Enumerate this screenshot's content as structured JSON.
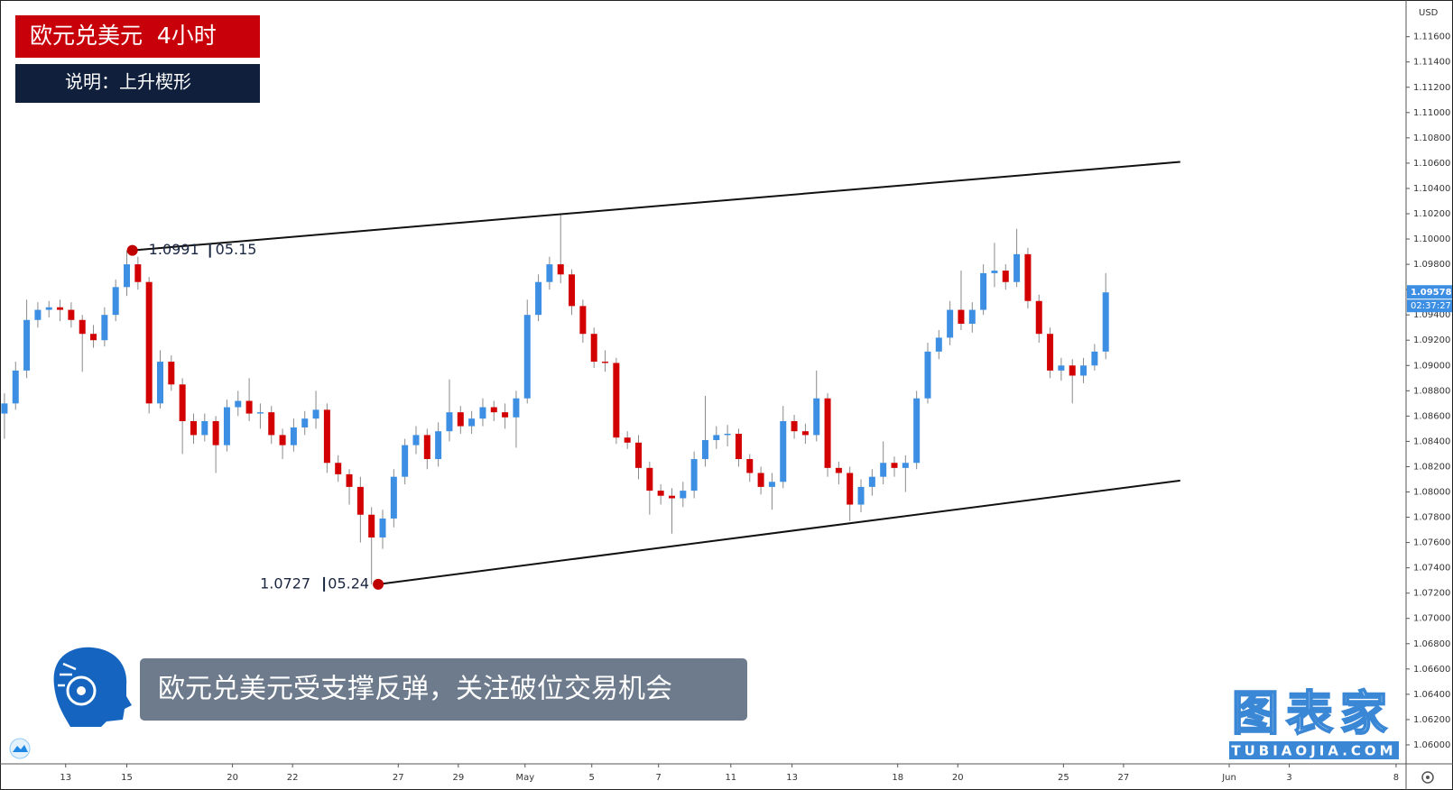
{
  "header": {
    "title": "欧元兑美元  4小时",
    "subtitle": "说明：上升楔形"
  },
  "caption": "欧元兑美元受支撑反弹，关注破位交易机会",
  "watermark": {
    "name": "图表家",
    "url": "TUBIAOJIA.COM"
  },
  "chart_data": {
    "type": "candlestick",
    "currency": "USD",
    "up_color": "#3d8fe3",
    "down_color": "#d20000",
    "open": [
      1.0862,
      1.087,
      1.0896,
      1.0936,
      1.0944,
      1.0946,
      1.0944,
      1.0936,
      1.0925,
      1.092,
      1.094,
      1.0962,
      1.098,
      1.0966,
      1.087,
      1.0903,
      1.0885,
      1.0856,
      1.0845,
      1.0856,
      1.0837,
      1.0867,
      1.0872,
      1.0862,
      1.0863,
      1.0845,
      1.0837,
      1.0851,
      1.0858,
      1.0865,
      1.0823,
      1.0814,
      1.0804,
      1.0782,
      1.0764,
      1.0779,
      1.0812,
      1.0837,
      1.0845,
      1.0826,
      1.0848,
      1.0863,
      1.0852,
      1.0858,
      1.0867,
      1.0863,
      1.0859,
      1.0874,
      1.094,
      1.0966,
      1.098,
      1.0972,
      1.0947,
      1.0925,
      1.0903,
      1.0902,
      1.0843,
      1.0839,
      1.0819,
      1.0801,
      1.0797,
      1.0795,
      1.0801,
      1.0826,
      1.0841,
      1.0845,
      1.0846,
      1.0826,
      1.0815,
      1.0804,
      1.0808,
      1.0856,
      1.0848,
      1.0845,
      1.0874,
      1.0819,
      1.0815,
      1.079,
      1.0804,
      1.0812,
      1.0823,
      1.0819,
      1.0823,
      1.0874,
      1.0911,
      1.0922,
      1.0944,
      1.0933,
      1.0944,
      1.0973,
      1.0975,
      1.0966,
      1.0988,
      1.0951,
      1.0925,
      1.0896,
      1.09,
      1.0892,
      1.09,
      1.0911
    ],
    "high": [
      1.0878,
      1.0903,
      1.0952,
      1.095,
      1.0951,
      1.0952,
      1.095,
      1.094,
      1.0932,
      1.0946,
      1.0968,
      1.0991,
      1.0986,
      1.097,
      1.0912,
      1.0908,
      1.089,
      1.0862,
      1.0862,
      1.086,
      1.0873,
      1.088,
      1.089,
      1.087,
      1.0868,
      1.085,
      1.0858,
      1.0864,
      1.088,
      1.087,
      1.0829,
      1.0818,
      1.0812,
      1.0788,
      1.0786,
      1.0818,
      1.0842,
      1.0852,
      1.085,
      1.0855,
      1.0889,
      1.0868,
      1.0864,
      1.0874,
      1.0872,
      1.087,
      1.088,
      1.0952,
      1.0972,
      1.0986,
      1.102,
      1.0976,
      1.0952,
      1.093,
      1.0912,
      1.0906,
      1.0848,
      1.0845,
      1.0824,
      1.0806,
      1.0803,
      1.0808,
      1.0832,
      1.0876,
      1.0852,
      1.0853,
      1.085,
      1.083,
      1.082,
      1.0815,
      1.0868,
      1.0861,
      1.0854,
      1.0896,
      1.0878,
      1.0824,
      1.082,
      1.081,
      1.0818,
      1.084,
      1.0828,
      1.0829,
      1.088,
      1.0918,
      1.0928,
      1.0951,
      1.0975,
      1.095,
      1.098,
      1.0997,
      1.098,
      1.1008,
      1.0993,
      1.0956,
      1.093,
      1.0906,
      1.0905,
      1.0906,
      1.0917,
      1.0973
    ],
    "low": [
      1.0842,
      1.0865,
      1.089,
      1.093,
      1.0938,
      1.0935,
      1.093,
      1.0895,
      1.0914,
      1.0915,
      1.0935,
      1.0955,
      1.096,
      1.0862,
      1.0866,
      1.088,
      1.083,
      1.0838,
      1.084,
      1.0815,
      1.0832,
      1.086,
      1.0856,
      1.085,
      1.0838,
      1.0826,
      1.0832,
      1.0845,
      1.085,
      1.0815,
      1.0808,
      1.079,
      1.076,
      1.0727,
      1.0755,
      1.0772,
      1.0806,
      1.083,
      1.0818,
      1.082,
      1.084,
      1.0846,
      1.0846,
      1.0852,
      1.0856,
      1.085,
      1.0835,
      1.087,
      1.0935,
      1.096,
      1.0965,
      1.094,
      1.0918,
      1.0898,
      1.0895,
      1.0838,
      1.0834,
      1.081,
      1.0782,
      1.079,
      1.0767,
      1.0788,
      1.0795,
      1.082,
      1.0834,
      1.0836,
      1.082,
      1.0808,
      1.0798,
      1.0786,
      1.0803,
      1.0842,
      1.0838,
      1.084,
      1.0812,
      1.0806,
      1.0777,
      1.0784,
      1.0797,
      1.0806,
      1.0812,
      1.08,
      1.0818,
      1.087,
      1.0905,
      1.0916,
      1.0928,
      1.0926,
      1.094,
      1.0962,
      1.096,
      1.0962,
      1.0945,
      1.0918,
      1.089,
      1.0888,
      1.087,
      1.0886,
      1.0896,
      1.0905
    ],
    "close": [
      1.087,
      1.0896,
      1.0936,
      1.0944,
      1.0946,
      1.0944,
      1.0936,
      1.0925,
      1.092,
      1.094,
      1.0962,
      1.098,
      1.0966,
      1.087,
      1.0903,
      1.0885,
      1.0856,
      1.0845,
      1.0856,
      1.0837,
      1.0867,
      1.0872,
      1.0862,
      1.0863,
      1.0845,
      1.0837,
      1.0851,
      1.0858,
      1.0865,
      1.0823,
      1.0814,
      1.0804,
      1.0782,
      1.0764,
      1.0779,
      1.0812,
      1.0837,
      1.0845,
      1.0826,
      1.0848,
      1.0863,
      1.0852,
      1.0858,
      1.0867,
      1.0863,
      1.0859,
      1.0874,
      1.094,
      1.0966,
      1.098,
      1.0972,
      1.0947,
      1.0925,
      1.0903,
      1.0902,
      1.0843,
      1.0839,
      1.0819,
      1.0801,
      1.0797,
      1.0795,
      1.0801,
      1.0826,
      1.0841,
      1.0845,
      1.0846,
      1.0826,
      1.0815,
      1.0804,
      1.0808,
      1.0856,
      1.0848,
      1.0845,
      1.0874,
      1.0819,
      1.0815,
      1.079,
      1.0804,
      1.0812,
      1.0823,
      1.0819,
      1.0823,
      1.0874,
      1.0911,
      1.0922,
      1.0944,
      1.0933,
      1.0944,
      1.0973,
      1.0975,
      1.0966,
      1.0988,
      1.0951,
      1.0925,
      1.0896,
      1.09,
      1.0892,
      1.09,
      1.0911,
      1.09578
    ],
    "xlim": [
      -0.4,
      126
    ],
    "xticks": [
      {
        "value": 5.5,
        "label": "13"
      },
      {
        "value": 11,
        "label": "15"
      },
      {
        "value": 20.5,
        "label": "20"
      },
      {
        "value": 25.9,
        "label": "22"
      },
      {
        "value": 35.4,
        "label": "27"
      },
      {
        "value": 40.8,
        "label": "29"
      },
      {
        "value": 46.8,
        "label": "May"
      },
      {
        "value": 52.8,
        "label": "5"
      },
      {
        "value": 58.8,
        "label": "7"
      },
      {
        "value": 65.3,
        "label": "11"
      },
      {
        "value": 70.8,
        "label": "13"
      },
      {
        "value": 80.3,
        "label": "18"
      },
      {
        "value": 85.7,
        "label": "20"
      },
      {
        "value": 95.2,
        "label": "25"
      },
      {
        "value": 100.6,
        "label": "27"
      },
      {
        "value": 110.1,
        "label": "Jun"
      },
      {
        "value": 115.5,
        "label": "3"
      },
      {
        "value": 125.1,
        "label": "8"
      }
    ],
    "ylim": [
      1.0585,
      1.1189
    ],
    "yticks": [
      {
        "value": 1.06,
        "label": "1.06000"
      },
      {
        "value": 1.062,
        "label": "1.06200"
      },
      {
        "value": 1.064,
        "label": "1.06400"
      },
      {
        "value": 1.066,
        "label": "1.06600"
      },
      {
        "value": 1.068,
        "label": "1.06800"
      },
      {
        "value": 1.07,
        "label": "1.07000"
      },
      {
        "value": 1.072,
        "label": "1.07200"
      },
      {
        "value": 1.074,
        "label": "1.07400"
      },
      {
        "value": 1.076,
        "label": "1.07600"
      },
      {
        "value": 1.078,
        "label": "1.07800"
      },
      {
        "value": 1.08,
        "label": "1.08000"
      },
      {
        "value": 1.082,
        "label": "1.08200"
      },
      {
        "value": 1.084,
        "label": "1.08400"
      },
      {
        "value": 1.086,
        "label": "1.08600"
      },
      {
        "value": 1.088,
        "label": "1.08800"
      },
      {
        "value": 1.09,
        "label": "1.09000"
      },
      {
        "value": 1.092,
        "label": "1.09200"
      },
      {
        "value": 1.094,
        "label": "1.09400"
      },
      {
        "value": 1.096,
        "label": "1.09600"
      },
      {
        "value": 1.098,
        "label": "1.09800"
      },
      {
        "value": 1.1,
        "label": "1.10000"
      },
      {
        "value": 1.102,
        "label": "1.10200"
      },
      {
        "value": 1.104,
        "label": "1.10400"
      },
      {
        "value": 1.106,
        "label": "1.10600"
      },
      {
        "value": 1.108,
        "label": "1.10800"
      },
      {
        "value": 1.11,
        "label": "1.11000"
      },
      {
        "value": 1.112,
        "label": "1.11200"
      },
      {
        "value": 1.114,
        "label": "1.11400"
      },
      {
        "value": 1.116,
        "label": "1.11600"
      }
    ],
    "trendlines": [
      {
        "start": [
          11.5,
          1.0991
        ],
        "end": [
          105.7,
          1.1061
        ]
      },
      {
        "start": [
          33.6,
          1.0727
        ],
        "end": [
          105.7,
          1.0809
        ]
      }
    ],
    "annotations": [
      {
        "x": 11.5,
        "value": 1.0991,
        "date": "05.15"
      },
      {
        "x": 33.6,
        "value": 1.0727,
        "date": "05.24"
      }
    ],
    "last_price": 1.09578,
    "countdown": "02:37:27"
  }
}
